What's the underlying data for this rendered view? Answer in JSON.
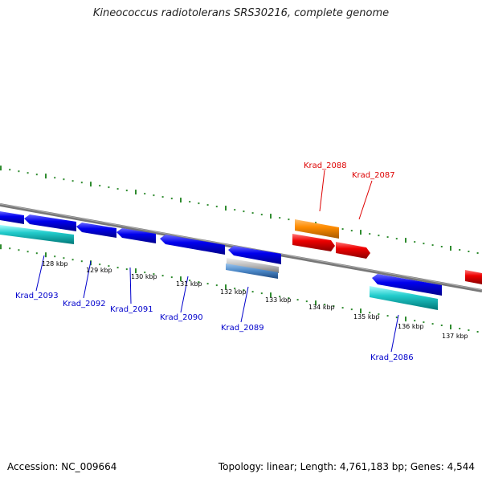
{
  "title": "Kineococcus radiotolerans SRS30216, complete genome",
  "footer": {
    "accession": "Accession: NC_009664",
    "summary": "Topology: linear; Length: 4,761,183 bp; Genes: 4,544"
  },
  "colors": {
    "backbone": "#888888",
    "tick": "#2e8b2e",
    "reverse_cds": "#0000ee",
    "forward_cds": "#ee0000",
    "rna": "#22cccc",
    "orange": "#ff8c00",
    "gray_feature": "#aaaaaa",
    "label_blue": "#0000cc",
    "label_red": "#dd0000"
  },
  "kbp_labels": [
    "128 kbp",
    "129 kbp",
    "130 kbp",
    "131 kbp",
    "132 kbp",
    "133 kbp",
    "134 kbp",
    "135 kbp",
    "136 kbp",
    "137 kbp"
  ],
  "gene_labels": [
    "Krad_2093",
    "Krad_2092",
    "Krad_2091",
    "Krad_2090",
    "Krad_2089",
    "Krad_2088",
    "Krad_2087",
    "Krad_2086"
  ]
}
